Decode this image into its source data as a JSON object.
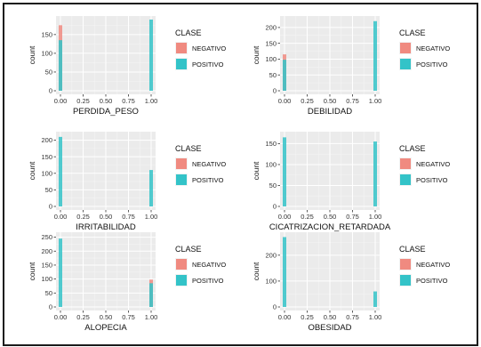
{
  "colors": {
    "negative": "#F08A80",
    "positive": "#33C3C8",
    "panel_bg": "#EBEBEB",
    "grid_major": "#FFFFFF",
    "grid_minor": "#F4F4F4",
    "frame": "#1A1A1A"
  },
  "chart_data": [
    {
      "type": "bar",
      "xlabel": "PERDIDA_PESO",
      "ylabel": "count",
      "xlim": [
        0,
        1
      ],
      "ylim": [
        0,
        190
      ],
      "yticks": [
        0,
        50,
        100,
        150
      ],
      "xticks": [
        "0.00",
        "0.25",
        "0.50",
        "0.75",
        "1.00"
      ],
      "x": [
        0,
        1
      ],
      "series": [
        {
          "name": "NEGATIVO",
          "values": [
            175,
            0
          ]
        },
        {
          "name": "POSITIVO",
          "values": [
            135,
            190
          ]
        }
      ],
      "legend": {
        "title": "CLASE",
        "position": "right",
        "entries": [
          "NEGATIVO",
          "POSITIVO"
        ]
      },
      "grid": true
    },
    {
      "type": "bar",
      "xlabel": "DEBILIDAD",
      "ylabel": "count",
      "xlim": [
        0,
        1
      ],
      "ylim": [
        0,
        225
      ],
      "yticks": [
        0,
        50,
        100,
        150,
        200
      ],
      "xticks": [
        "0.00",
        "0.25",
        "0.50",
        "0.75",
        "1.00"
      ],
      "x": [
        0,
        1
      ],
      "series": [
        {
          "name": "NEGATIVO",
          "values": [
            115,
            0
          ]
        },
        {
          "name": "POSITIVO",
          "values": [
            98,
            220
          ]
        }
      ],
      "legend": {
        "title": "CLASE",
        "position": "right",
        "entries": [
          "NEGATIVO",
          "POSITIVO"
        ]
      },
      "grid": true
    },
    {
      "type": "bar",
      "xlabel": "IRRITABILIDAD",
      "ylabel": "count",
      "xlim": [
        0,
        1
      ],
      "ylim": [
        0,
        215
      ],
      "yticks": [
        0,
        50,
        100,
        150,
        200
      ],
      "xticks": [
        "0.00",
        "0.25",
        "0.50",
        "0.75",
        "1.00"
      ],
      "x": [
        0,
        1
      ],
      "series": [
        {
          "name": "NEGATIVO",
          "values": [
            0,
            0
          ]
        },
        {
          "name": "POSITIVO",
          "values": [
            210,
            110
          ]
        }
      ],
      "legend": {
        "title": "CLASE",
        "position": "right",
        "entries": [
          "NEGATIVO",
          "POSITIVO"
        ]
      },
      "grid": true
    },
    {
      "type": "bar",
      "xlabel": "CICATRIZACION_RETARDADA",
      "ylabel": "count",
      "xlim": [
        0,
        1
      ],
      "ylim": [
        0,
        170
      ],
      "yticks": [
        0,
        50,
        100,
        150
      ],
      "xticks": [
        "0.00",
        "0.25",
        "0.50",
        "0.75",
        "1.00"
      ],
      "x": [
        0,
        1
      ],
      "series": [
        {
          "name": "NEGATIVO",
          "values": [
            0,
            0
          ]
        },
        {
          "name": "POSITIVO",
          "values": [
            165,
            155
          ]
        }
      ],
      "legend": {
        "title": "CLASE",
        "position": "right",
        "entries": [
          "NEGATIVO",
          "POSITIVO"
        ]
      },
      "grid": true
    },
    {
      "type": "bar",
      "xlabel": "ALOPECIA",
      "ylabel": "count",
      "xlim": [
        0,
        1
      ],
      "ylim": [
        0,
        255
      ],
      "yticks": [
        0,
        50,
        100,
        150,
        200,
        250
      ],
      "xticks": [
        "0.00",
        "0.25",
        "0.50",
        "0.75",
        "1.00"
      ],
      "x": [
        0,
        1
      ],
      "series": [
        {
          "name": "NEGATIVO",
          "values": [
            0,
            98
          ]
        },
        {
          "name": "POSITIVO",
          "values": [
            245,
            85
          ]
        }
      ],
      "legend": {
        "title": "CLASE",
        "position": "right",
        "entries": [
          "NEGATIVO",
          "POSITIVO"
        ]
      },
      "grid": true
    },
    {
      "type": "bar",
      "xlabel": "OBESIDAD",
      "ylabel": "count",
      "xlim": [
        0,
        1
      ],
      "ylim": [
        0,
        275
      ],
      "yticks": [
        0,
        100,
        200
      ],
      "xticks": [
        "0.00",
        "0.25",
        "0.50",
        "0.75",
        "1.00"
      ],
      "x": [
        0,
        1
      ],
      "series": [
        {
          "name": "NEGATIVO",
          "values": [
            0,
            0
          ]
        },
        {
          "name": "POSITIVO",
          "values": [
            270,
            60
          ]
        }
      ],
      "legend": {
        "title": "CLASE",
        "position": "right",
        "entries": [
          "NEGATIVO",
          "POSITIVO"
        ]
      },
      "grid": true
    }
  ]
}
